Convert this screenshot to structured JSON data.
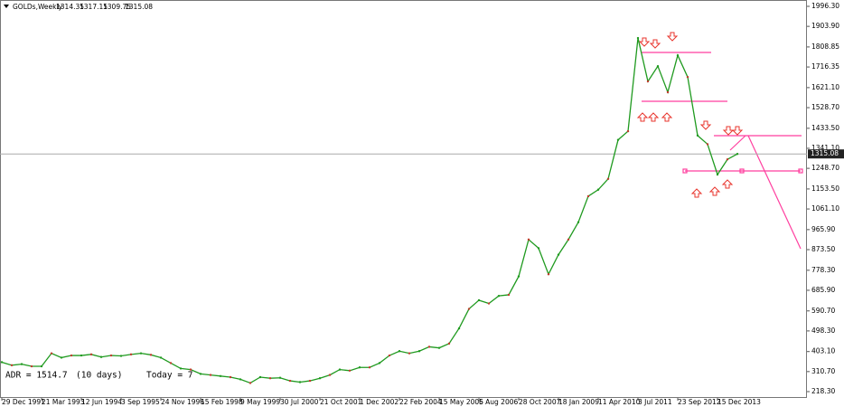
{
  "chart_data": {
    "type": "line",
    "title": "GOLDs,Weekly",
    "ohlc": [
      1314.35,
      1317.15,
      1309.75,
      1315.08
    ],
    "annotations": [
      "ADR = 1514.7",
      "(10 days)",
      "Today = 7"
    ],
    "categories": [
      "29 Dec 1991",
      null,
      null,
      null,
      "21 Mar 1993",
      null,
      null,
      null,
      "12 Jun 1994",
      null,
      null,
      null,
      "3 Sep 1995",
      null,
      null,
      null,
      "24 Nov 1996",
      null,
      null,
      null,
      "15 Feb 1998",
      null,
      null,
      null,
      "9 May 1999",
      null,
      null,
      null,
      "30 Jul 2000",
      null,
      null,
      null,
      "21 Oct 2001",
      null,
      null,
      null,
      "1 Dec 2002",
      null,
      null,
      null,
      "22 Feb 2004",
      null,
      null,
      null,
      "15 May 2005",
      null,
      null,
      null,
      "6 Aug 2006",
      null,
      null,
      null,
      "28 Oct 2007",
      null,
      null,
      null,
      "18 Jan 2009",
      null,
      null,
      null,
      "11 Apr 2010",
      null,
      null,
      null,
      "3 Jul 2011",
      null,
      null,
      null,
      "23 Sep 2012",
      null,
      null,
      null,
      "15 Dec 2013",
      null,
      null
    ],
    "values": [
      354,
      340,
      345,
      335,
      335,
      395,
      375,
      385,
      385,
      390,
      378,
      385,
      383,
      390,
      395,
      388,
      375,
      350,
      325,
      320,
      300,
      295,
      290,
      285,
      275,
      258,
      285,
      280,
      282,
      268,
      262,
      268,
      280,
      295,
      320,
      315,
      330,
      330,
      350,
      385,
      405,
      395,
      405,
      425,
      420,
      440,
      510,
      600,
      640,
      625,
      660,
      665,
      750,
      920,
      880,
      760,
      850,
      920,
      1000,
      1120,
      1150,
      1200,
      1380,
      1420,
      1850,
      1650,
      1720,
      1600,
      1770,
      1670,
      1400,
      1360,
      1220,
      1290,
      1315
    ],
    "color": "#1f9a1f",
    "current_price": 1315.08,
    "ylim": [
      189,
      2025.5
    ],
    "yticks": [
      {
        "value": 1996.3,
        "label": "1996.30"
      },
      {
        "value": 1903.9,
        "label": "1903.90"
      },
      {
        "value": 1808.85,
        "label": "1808.85"
      },
      {
        "value": 1716.35,
        "label": "1716.35"
      },
      {
        "value": 1621.1,
        "label": "1621.10"
      },
      {
        "value": 1528.7,
        "label": "1528.70"
      },
      {
        "value": 1433.5,
        "label": "1433.50"
      },
      {
        "value": 1341.1,
        "label": "1341.10"
      },
      {
        "value": 1248.7,
        "label": "1248.70"
      },
      {
        "value": 1153.5,
        "label": "1153.50"
      },
      {
        "value": 1061.1,
        "label": "1061.10"
      },
      {
        "value": 965.9,
        "label": "965.90"
      },
      {
        "value": 873.5,
        "label": "873.50"
      },
      {
        "value": 778.3,
        "label": "778.30"
      },
      {
        "value": 685.9,
        "label": "685.90"
      },
      {
        "value": 590.7,
        "label": "590.70"
      },
      {
        "value": 498.3,
        "label": "498.30"
      },
      {
        "value": 403.1,
        "label": "403.10"
      },
      {
        "value": 310.7,
        "label": "310.70"
      },
      {
        "value": 218.3,
        "label": "218.30"
      }
    ]
  }
}
